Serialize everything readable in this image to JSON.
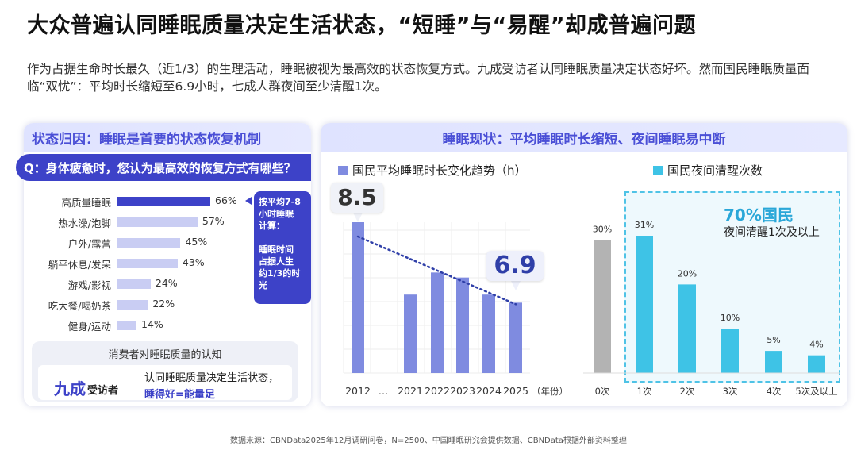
{
  "title": "大众普遍认同睡眠质量决定生活状态，“短睡”与“易醒”却成普遍问题",
  "intro": "作为占据生命时长最久（近1/3）的生理活动，睡眠被视为最高效的状态恢复方式。九成受访者认同睡眠质量决定状态好坏。然而国民睡眠质量面临“双忧”：平均时长缩短至6.9小时，七成人群夜间至少清醒1次。",
  "left_panel": {
    "header_prefix": "状态归因：",
    "header_main": "睡眠是首要的状态恢复机制",
    "question": "Q：身体疲惫时，您认为最高效的恢复方式有哪些？",
    "callout_lines": [
      "按平均7-8",
      "小时睡眠",
      "计算：",
      "",
      "睡眠时间",
      "占据人生",
      "约1/3的时",
      "光"
    ],
    "perception_title": "消费者对睡眠质量的认知",
    "perception_big": "九成",
    "perception_small": "受访者",
    "perception_desc": "认同睡眠质量决定生活状态，",
    "perception_desc2": "睡得好=能量足"
  },
  "right_panel": {
    "header_prefix": "睡眠现状：",
    "header_main": "平均睡眠时长缩短、夜间睡眠易中断",
    "legend_duration": "国民平均睡眠时长变化趋势（h）",
    "legend_wake": "国民夜间清醒次数",
    "big_label_2012": "8.5",
    "big_label_2025": "6.9",
    "wake_pct": "70%国民",
    "wake_desc": "夜间清醒1次及以上",
    "year_suffix": "（年份）"
  },
  "source": "数据来源：CBNData2025年12月调研问卷，N=2500、中国睡眠研究会提供数据、CBNData根据外部资料整理",
  "colors": {
    "primary": "#3d42c8",
    "bar_light": "#c9cdf3",
    "duration_bar": "#7f8be0",
    "wake_bar": "#3ec3e6",
    "wake_gray": "#b3b3b3",
    "trend_dot": "#2f3fa8"
  },
  "chart_data": [
    {
      "type": "bar",
      "orientation": "horizontal",
      "categories": [
        "高质量睡眠",
        "热水澡/泡脚",
        "户外/露营",
        "躺平休息/发呆",
        "游戏/影视",
        "吃大餐/喝奶茶",
        "健身/运动"
      ],
      "values": [
        66,
        57,
        45,
        43,
        24,
        22,
        14
      ],
      "value_labels": [
        "66%",
        "57%",
        "45%",
        "43%",
        "24%",
        "22%",
        "14%"
      ],
      "title": "Q：身体疲惫时，您认为最高效的恢复方式有哪些？",
      "highlight_index": 0
    },
    {
      "type": "bar",
      "categories": [
        "2012",
        "…",
        "2021",
        "2022",
        "2023",
        "2024",
        "2025"
      ],
      "values": [
        8.5,
        null,
        7.06,
        7.5,
        7.4,
        7.06,
        6.9
      ],
      "series": [
        {
          "name": "国民平均睡眠时长变化趋势（h）",
          "values": [
            8.5,
            null,
            7.06,
            7.5,
            7.4,
            7.06,
            6.9
          ]
        }
      ],
      "trend_line": {
        "from": "2012",
        "to": "2025",
        "style": "dotted"
      },
      "data_labels": {
        "2012": "8.5",
        "2025": "6.9"
      },
      "xlabel": "（年份）",
      "ylim": [
        5.5,
        9
      ]
    },
    {
      "type": "bar",
      "categories": [
        "0次",
        "1次",
        "2次",
        "3次",
        "4次",
        "5次及以上"
      ],
      "values": [
        30,
        31,
        20,
        10,
        5,
        4
      ],
      "value_labels": [
        "30%",
        "31%",
        "20%",
        "10%",
        "5%",
        "4%"
      ],
      "series": [
        {
          "name": "国民夜间清醒次数",
          "values": [
            30,
            31,
            20,
            10,
            5,
            4
          ]
        }
      ],
      "annotation": "70%国民 夜间清醒1次及以上",
      "ylim": [
        0,
        35
      ]
    }
  ]
}
